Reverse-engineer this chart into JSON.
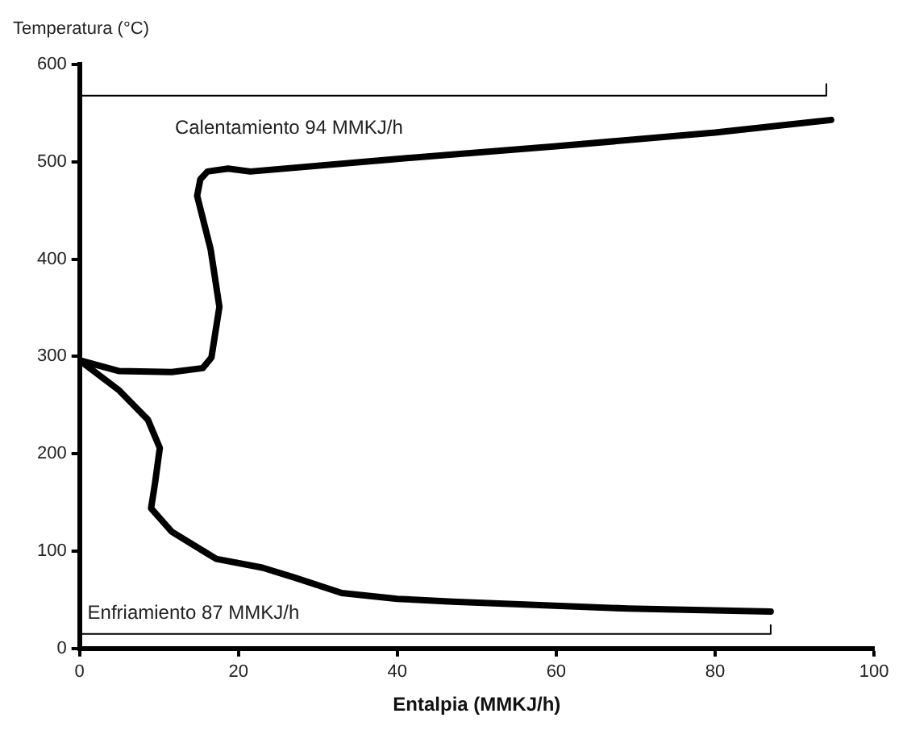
{
  "chart_data": {
    "type": "line",
    "ylabel": "Temperatura (°C)",
    "xlabel": "Entalpia (MMKJ/h)",
    "xlim": [
      0,
      100
    ],
    "xticks": [
      0,
      20,
      40,
      60,
      80,
      100
    ],
    "ylim": [
      0,
      600
    ],
    "yticks": [
      0,
      100,
      200,
      300,
      400,
      500,
      600
    ],
    "grid": false,
    "legend": false,
    "marker": "none",
    "line_style": "solid",
    "series": [
      {
        "color": "#000000",
        "x": [
          0,
          5,
          11.6,
          15.5,
          16.6,
          17.6,
          16.5,
          14.8,
          15.2,
          16.1,
          18.7,
          21.5,
          40,
          60,
          80,
          94.6
        ],
        "values": [
          296,
          285,
          284,
          288,
          299,
          351,
          410,
          465,
          482,
          490,
          493,
          490,
          503,
          516,
          530,
          543
        ]
      },
      {
        "color": "#000000",
        "x": [
          0,
          5,
          8.6,
          10.1,
          9.5,
          9,
          11.6,
          17.2,
          23,
          27,
          33,
          40,
          47,
          69,
          87
        ],
        "values": [
          296,
          265,
          235,
          206,
          170,
          144,
          120,
          92,
          83,
          73,
          57,
          51,
          48,
          41,
          38
        ]
      },
      {
        "color": "#000000",
        "x": [
          0,
          94,
          94
        ],
        "values": [
          568,
          568,
          580
        ]
      },
      {
        "color": "#000000",
        "x": [
          0,
          87,
          87
        ],
        "values": [
          15,
          15,
          24
        ]
      }
    ],
    "annotations": [
      "Calentamiento 94 MMKJ/h",
      "Enfriamiento 87 MMKJ/h"
    ]
  }
}
